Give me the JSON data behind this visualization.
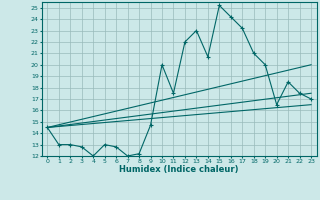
{
  "xlabel": "Humidex (Indice chaleur)",
  "background_color": "#cce8e8",
  "grid_color": "#99bbbb",
  "line_color": "#006666",
  "xlim": [
    -0.5,
    23.5
  ],
  "ylim": [
    12,
    25.5
  ],
  "xticks": [
    0,
    1,
    2,
    3,
    4,
    5,
    6,
    7,
    8,
    9,
    10,
    11,
    12,
    13,
    14,
    15,
    16,
    17,
    18,
    19,
    20,
    21,
    22,
    23
  ],
  "yticks": [
    12,
    13,
    14,
    15,
    16,
    17,
    18,
    19,
    20,
    21,
    22,
    23,
    24,
    25
  ],
  "main_x": [
    0,
    1,
    2,
    3,
    4,
    5,
    6,
    7,
    8,
    9,
    10,
    11,
    12,
    13,
    14,
    15,
    16,
    17,
    18,
    19,
    20,
    21,
    22,
    23
  ],
  "main_y": [
    14.5,
    13,
    13,
    12.8,
    12,
    13,
    12.8,
    12,
    12.2,
    14.7,
    20,
    17.5,
    22,
    23,
    20.7,
    25.2,
    24.2,
    23.2,
    21,
    20,
    16.5,
    18.5,
    17.5,
    17
  ],
  "upper_line_x": [
    0,
    23
  ],
  "upper_line_y": [
    14.5,
    20.0
  ],
  "mid_line_x": [
    0,
    23
  ],
  "mid_line_y": [
    14.5,
    17.5
  ],
  "lower_line_x": [
    0,
    23
  ],
  "lower_line_y": [
    14.5,
    16.5
  ]
}
